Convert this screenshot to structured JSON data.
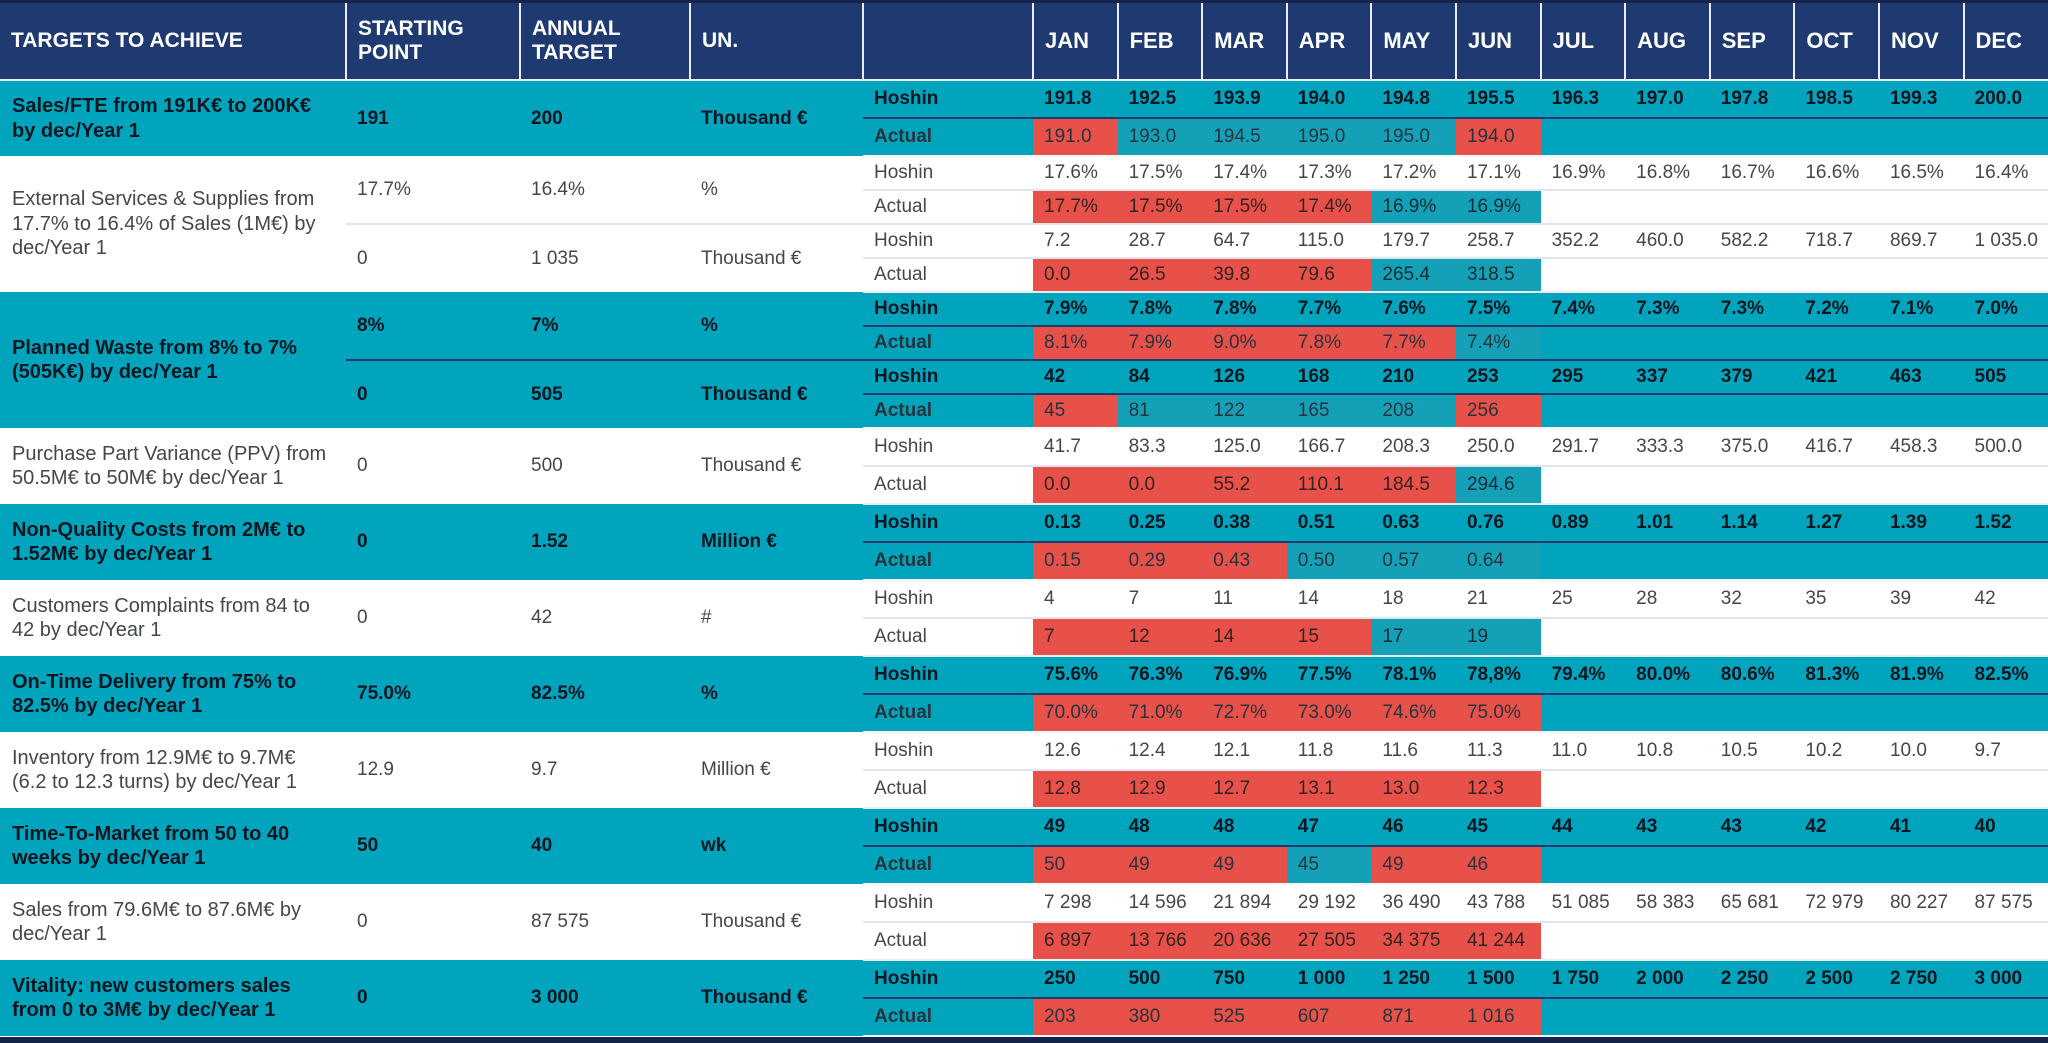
{
  "table": {
    "headers": {
      "targets": "TARGETS TO ACHIEVE",
      "starting": "STARTING POINT",
      "annual": "ANNUAL TARGET",
      "unit": "UN.",
      "months": [
        "JAN",
        "FEB",
        "MAR",
        "APR",
        "MAY",
        "JUN",
        "JUL",
        "AUG",
        "SEP",
        "OCT",
        "NOV",
        "DEC"
      ]
    },
    "row_labels": {
      "hoshin": "Hoshin",
      "actual": "Actual"
    },
    "colors": {
      "header_navy": "#1e3a70",
      "teal_row": "#00a4bd",
      "actual_ok_teal": "#14a1b8",
      "actual_miss_red": "#e8514a",
      "bottom_bar_navy": "#13234a"
    },
    "groups": [
      {
        "description": "Sales/FTE from 191K€ to 200K€ by dec/Year 1",
        "style": "teal",
        "metrics": [
          {
            "starting": "191",
            "annual": "200",
            "unit": "Thousand €",
            "hoshin": [
              "191.8",
              "192.5",
              "193.9",
              "194.0",
              "194.8",
              "195.5",
              "196.3",
              "197.0",
              "197.8",
              "198.5",
              "199.3",
              "200.0"
            ],
            "actual": [
              {
                "value": "191.0",
                "miss": true
              },
              {
                "value": "193.0",
                "miss": false
              },
              {
                "value": "194.5",
                "miss": false
              },
              {
                "value": "195.0",
                "miss": false
              },
              {
                "value": "195.0",
                "miss": false
              },
              {
                "value": "194.0",
                "miss": true
              }
            ]
          }
        ]
      },
      {
        "description": "External Services & Supplies from 17.7% to 16.4% of Sales (1M€) by dec/Year 1",
        "style": "white",
        "metrics": [
          {
            "starting": "17.7%",
            "annual": "16.4%",
            "unit": "%",
            "hoshin": [
              "17.6%",
              "17.5%",
              "17.4%",
              "17.3%",
              "17.2%",
              "17.1%",
              "16.9%",
              "16.8%",
              "16.7%",
              "16.6%",
              "16.5%",
              "16.4%"
            ],
            "actual": [
              {
                "value": "17.7%",
                "miss": true
              },
              {
                "value": "17.5%",
                "miss": true
              },
              {
                "value": "17.5%",
                "miss": true
              },
              {
                "value": "17.4%",
                "miss": true
              },
              {
                "value": "16.9%",
                "miss": false
              },
              {
                "value": "16.9%",
                "miss": false
              }
            ]
          },
          {
            "starting": "0",
            "annual": "1 035",
            "unit": "Thousand €",
            "hoshin": [
              "7.2",
              "28.7",
              "64.7",
              "115.0",
              "179.7",
              "258.7",
              "352.2",
              "460.0",
              "582.2",
              "718.7",
              "869.7",
              "1 035.0"
            ],
            "actual": [
              {
                "value": "0.0",
                "miss": true
              },
              {
                "value": "26.5",
                "miss": true
              },
              {
                "value": "39.8",
                "miss": true
              },
              {
                "value": "79.6",
                "miss": true
              },
              {
                "value": "265.4",
                "miss": false
              },
              {
                "value": "318.5",
                "miss": false
              }
            ]
          }
        ]
      },
      {
        "description": "Planned Waste from 8% to 7% (505K€) by dec/Year 1",
        "style": "teal",
        "metrics": [
          {
            "starting": "8%",
            "annual": "7%",
            "unit": "%",
            "hoshin": [
              "7.9%",
              "7.8%",
              "7.8%",
              "7.7%",
              "7.6%",
              "7.5%",
              "7.4%",
              "7.3%",
              "7.3%",
              "7.2%",
              "7.1%",
              "7.0%"
            ],
            "actual": [
              {
                "value": "8.1%",
                "miss": true
              },
              {
                "value": "7.9%",
                "miss": true
              },
              {
                "value": "9.0%",
                "miss": true
              },
              {
                "value": "7.8%",
                "miss": true
              },
              {
                "value": "7.7%",
                "miss": true
              },
              {
                "value": "7.4%",
                "miss": false
              }
            ]
          },
          {
            "starting": "0",
            "annual": "505",
            "unit": "Thousand €",
            "hoshin": [
              "42",
              "84",
              "126",
              "168",
              "210",
              "253",
              "295",
              "337",
              "379",
              "421",
              "463",
              "505"
            ],
            "actual": [
              {
                "value": "45",
                "miss": true
              },
              {
                "value": "81",
                "miss": false
              },
              {
                "value": "122",
                "miss": false
              },
              {
                "value": "165",
                "miss": false
              },
              {
                "value": "208",
                "miss": false
              },
              {
                "value": "256",
                "miss": true
              }
            ]
          }
        ]
      },
      {
        "description": "Purchase Part Variance (PPV) from 50.5M€ to 50M€ by dec/Year 1",
        "style": "white",
        "metrics": [
          {
            "starting": "0",
            "annual": "500",
            "unit": "Thousand €",
            "hoshin": [
              "41.7",
              "83.3",
              "125.0",
              "166.7",
              "208.3",
              "250.0",
              "291.7",
              "333.3",
              "375.0",
              "416.7",
              "458.3",
              "500.0"
            ],
            "actual": [
              {
                "value": "0.0",
                "miss": true
              },
              {
                "value": "0.0",
                "miss": true
              },
              {
                "value": "55.2",
                "miss": true
              },
              {
                "value": "110.1",
                "miss": true
              },
              {
                "value": "184.5",
                "miss": true
              },
              {
                "value": "294.6",
                "miss": false
              }
            ]
          }
        ]
      },
      {
        "description": "Non-Quality Costs from 2M€ to 1.52M€ by dec/Year 1",
        "style": "teal",
        "metrics": [
          {
            "starting": "0",
            "annual": "1.52",
            "unit": "Million €",
            "hoshin": [
              "0.13",
              "0.25",
              "0.38",
              "0.51",
              "0.63",
              "0.76",
              "0.89",
              "1.01",
              "1.14",
              "1.27",
              "1.39",
              "1.52"
            ],
            "actual": [
              {
                "value": "0.15",
                "miss": true
              },
              {
                "value": "0.29",
                "miss": true
              },
              {
                "value": "0.43",
                "miss": true
              },
              {
                "value": "0.50",
                "miss": false
              },
              {
                "value": "0.57",
                "miss": false
              },
              {
                "value": "0.64",
                "miss": false
              }
            ]
          }
        ]
      },
      {
        "description": "Customers Complaints from 84 to 42 by dec/Year 1",
        "style": "white",
        "metrics": [
          {
            "starting": "0",
            "annual": "42",
            "unit": "#",
            "hoshin": [
              "4",
              "7",
              "11",
              "14",
              "18",
              "21",
              "25",
              "28",
              "32",
              "35",
              "39",
              "42"
            ],
            "actual": [
              {
                "value": "7",
                "miss": true
              },
              {
                "value": "12",
                "miss": true
              },
              {
                "value": "14",
                "miss": true
              },
              {
                "value": "15",
                "miss": true
              },
              {
                "value": "17",
                "miss": false
              },
              {
                "value": "19",
                "miss": false
              }
            ]
          }
        ]
      },
      {
        "description": "On-Time Delivery from 75% to 82.5% by dec/Year 1",
        "style": "teal",
        "metrics": [
          {
            "starting": "75.0%",
            "annual": "82.5%",
            "unit": "%",
            "hoshin": [
              "75.6%",
              "76.3%",
              "76.9%",
              "77.5%",
              "78.1%",
              "78,8%",
              "79.4%",
              "80.0%",
              "80.6%",
              "81.3%",
              "81.9%",
              "82.5%"
            ],
            "actual": [
              {
                "value": "70.0%",
                "miss": true
              },
              {
                "value": "71.0%",
                "miss": true
              },
              {
                "value": "72.7%",
                "miss": true
              },
              {
                "value": "73.0%",
                "miss": true
              },
              {
                "value": "74.6%",
                "miss": true
              },
              {
                "value": "75.0%",
                "miss": true
              }
            ]
          }
        ]
      },
      {
        "description": "Inventory from 12.9M€ to 9.7M€ (6.2 to 12.3 turns) by dec/Year 1",
        "style": "white",
        "metrics": [
          {
            "starting": "12.9",
            "annual": "9.7",
            "unit": "Million €",
            "hoshin": [
              "12.6",
              "12.4",
              "12.1",
              "11.8",
              "11.6",
              "11.3",
              "11.0",
              "10.8",
              "10.5",
              "10.2",
              "10.0",
              "9.7"
            ],
            "actual": [
              {
                "value": "12.8",
                "miss": true
              },
              {
                "value": "12.9",
                "miss": true
              },
              {
                "value": "12.7",
                "miss": true
              },
              {
                "value": "13.1",
                "miss": true
              },
              {
                "value": "13.0",
                "miss": true
              },
              {
                "value": "12.3",
                "miss": true
              }
            ]
          }
        ]
      },
      {
        "description": "Time-To-Market from 50 to 40 weeks by dec/Year 1",
        "style": "teal",
        "metrics": [
          {
            "starting": "50",
            "annual": "40",
            "unit": "wk",
            "hoshin": [
              "49",
              "48",
              "48",
              "47",
              "46",
              "45",
              "44",
              "43",
              "43",
              "42",
              "41",
              "40"
            ],
            "actual": [
              {
                "value": "50",
                "miss": true
              },
              {
                "value": "49",
                "miss": true
              },
              {
                "value": "49",
                "miss": true
              },
              {
                "value": "45",
                "miss": false
              },
              {
                "value": "49",
                "miss": true
              },
              {
                "value": "46",
                "miss": true
              }
            ]
          }
        ]
      },
      {
        "description": "Sales from 79.6M€ to 87.6M€ by dec/Year 1",
        "style": "white",
        "metrics": [
          {
            "starting": "0",
            "annual": "87 575",
            "unit": "Thousand €",
            "hoshin": [
              "7 298",
              "14 596",
              "21 894",
              "29 192",
              "36 490",
              "43 788",
              "51 085",
              "58 383",
              "65 681",
              "72 979",
              "80 227",
              "87 575"
            ],
            "actual": [
              {
                "value": "6 897",
                "miss": true
              },
              {
                "value": "13 766",
                "miss": true
              },
              {
                "value": "20 636",
                "miss": true
              },
              {
                "value": "27 505",
                "miss": true
              },
              {
                "value": "34 375",
                "miss": true
              },
              {
                "value": "41 244",
                "miss": true
              }
            ]
          }
        ]
      },
      {
        "description": "Vitality: new customers sales from 0 to 3M€ by dec/Year 1",
        "style": "teal",
        "metrics": [
          {
            "starting": "0",
            "annual": "3 000",
            "unit": "Thousand €",
            "hoshin": [
              "250",
              "500",
              "750",
              "1 000",
              "1 250",
              "1 500",
              "1 750",
              "2 000",
              "2 250",
              "2 500",
              "2 750",
              "3 000"
            ],
            "actual": [
              {
                "value": "203",
                "miss": true
              },
              {
                "value": "380",
                "miss": true
              },
              {
                "value": "525",
                "miss": true
              },
              {
                "value": "607",
                "miss": true
              },
              {
                "value": "871",
                "miss": true
              },
              {
                "value": "1 016",
                "miss": true
              }
            ]
          }
        ]
      }
    ]
  }
}
